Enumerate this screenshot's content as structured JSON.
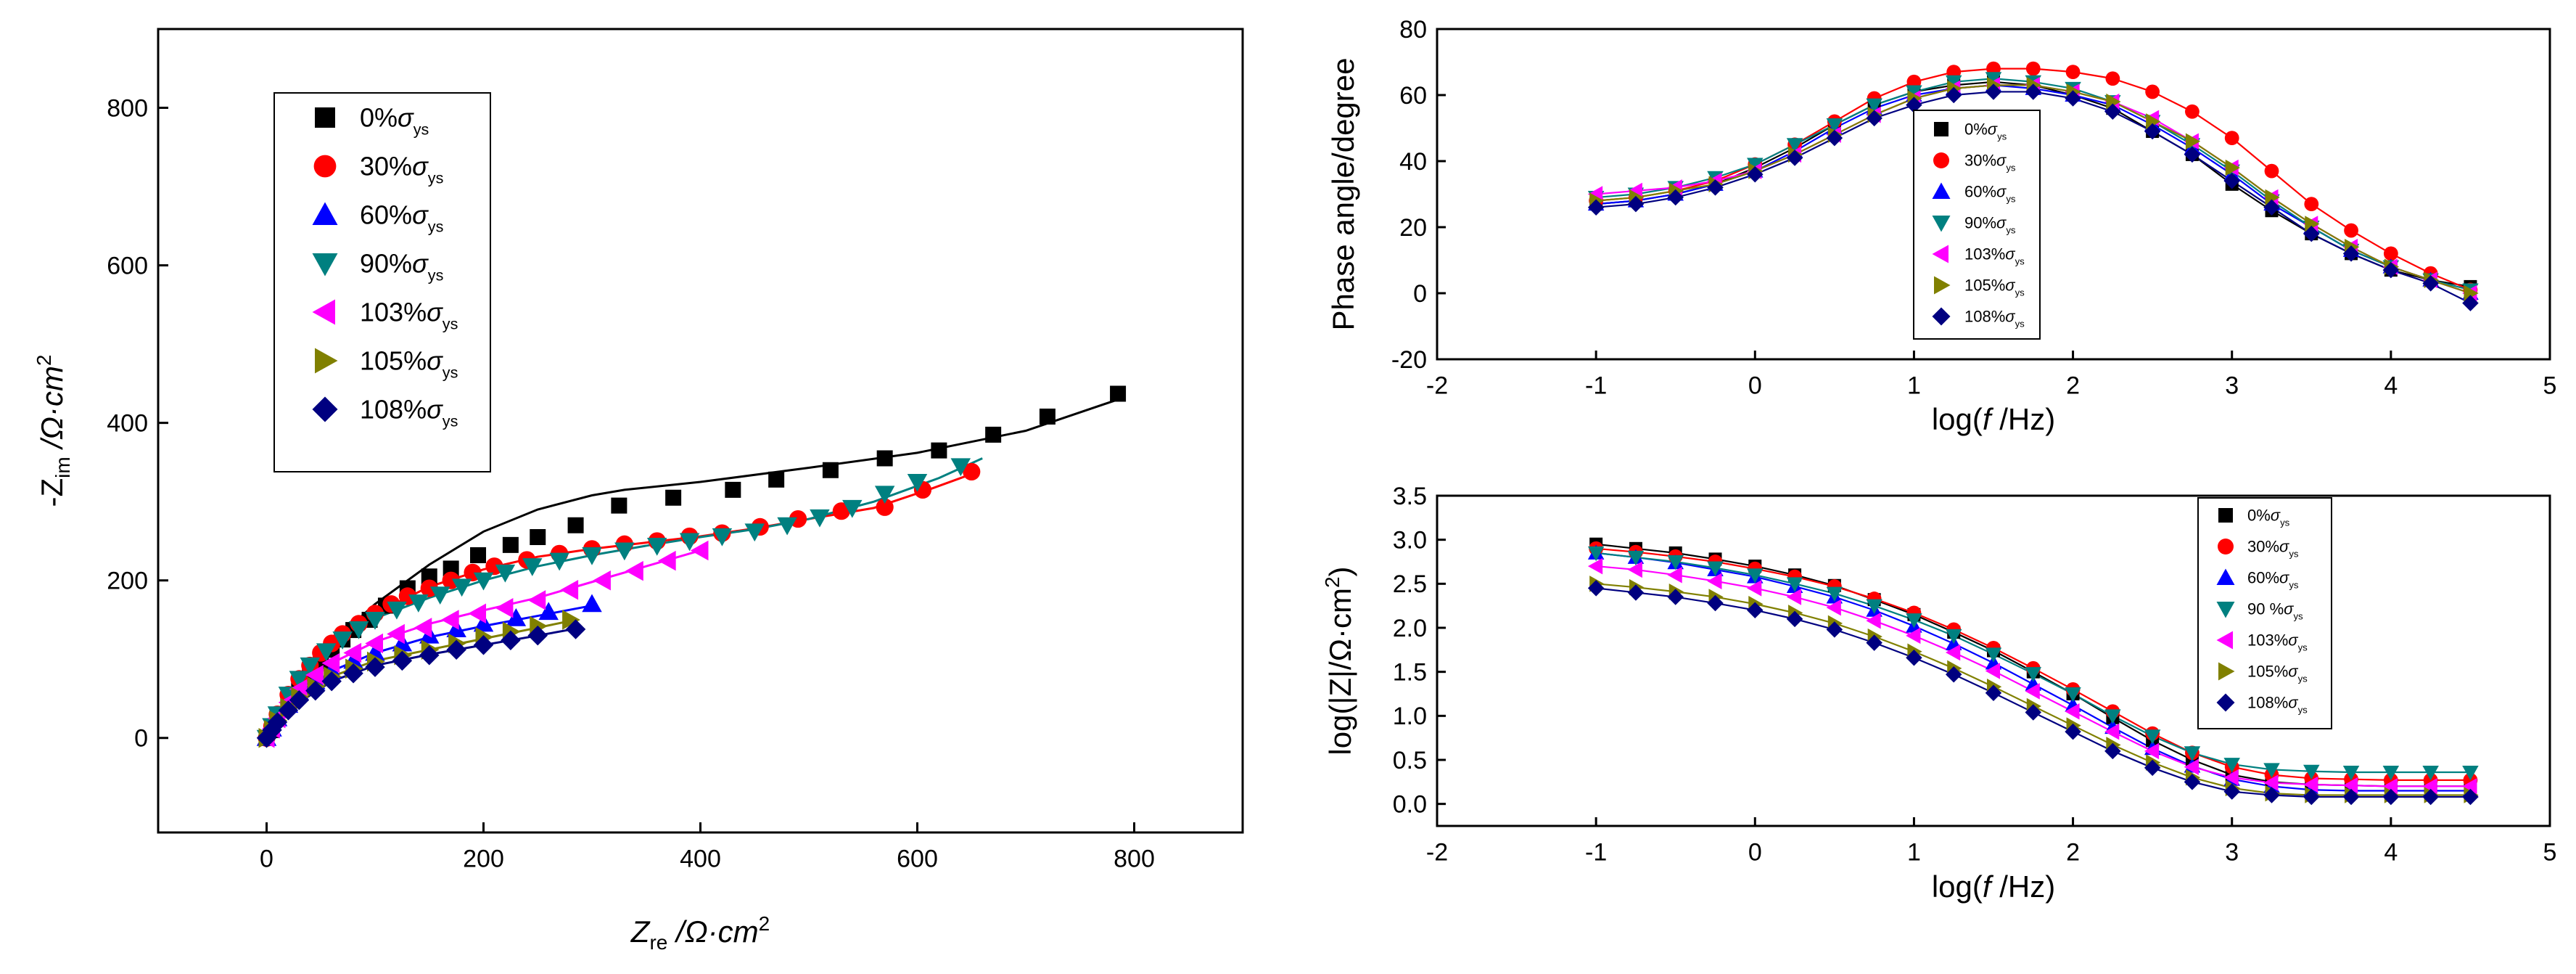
{
  "series_style": [
    {
      "name": "0%",
      "color": "#000000",
      "marker": "square"
    },
    {
      "name": "30%",
      "color": "#ff0000",
      "marker": "circle"
    },
    {
      "name": "60%",
      "color": "#0000ff",
      "marker": "triangle-up"
    },
    {
      "name": "90%",
      "color": "#008080",
      "marker": "triangle-down"
    },
    {
      "name": "103%",
      "color": "#ff00ff",
      "marker": "triangle-left"
    },
    {
      "name": "105%",
      "color": "#808000",
      "marker": "triangle-right"
    },
    {
      "name": "108%",
      "color": "#000080",
      "marker": "diamond"
    }
  ],
  "legend_suffix": {
    "sym": "σ",
    "sub": "ys"
  },
  "chart_data": [
    {
      "type": "scatter",
      "title": "",
      "xlabel": {
        "main": "Z",
        "sub": "re",
        "rest": " /Ω·cm",
        "sup": "2"
      },
      "ylabel": {
        "main": "-Z",
        "sub": "im",
        "rest": " /Ω·cm",
        "sup": "2"
      },
      "xlim": [
        -100,
        900
      ],
      "ylim": [
        -120,
        900
      ],
      "xticks": [
        0,
        200,
        400,
        600,
        800
      ],
      "yticks": [
        0,
        200,
        400,
        600,
        800
      ],
      "legend_entries": [
        "0%",
        "30%",
        "60%",
        "90%",
        "103%",
        "105%",
        "108%"
      ],
      "legend_position": "top-left",
      "series": [
        {
          "name": "0%",
          "x": [
            0,
            5,
            10,
            20,
            30,
            40,
            50,
            60,
            70,
            80,
            95,
            110,
            130,
            150,
            170,
            195,
            225,
            250,
            285,
            325,
            375,
            430,
            470,
            520,
            570,
            620,
            670,
            720,
            785
          ],
          "y": [
            0,
            10,
            25,
            45,
            65,
            82,
            98,
            112,
            125,
            137,
            150,
            168,
            190,
            205,
            215,
            232,
            245,
            255,
            270,
            295,
            305,
            315,
            328,
            340,
            355,
            365,
            385,
            408,
            437
          ]
        },
        {
          "name": "30%",
          "x": [
            0,
            5,
            10,
            20,
            30,
            40,
            50,
            60,
            70,
            85,
            100,
            115,
            130,
            150,
            170,
            190,
            210,
            240,
            270,
            300,
            330,
            360,
            390,
            420,
            455,
            490,
            530,
            570,
            605,
            650
          ],
          "y": [
            0,
            15,
            30,
            55,
            75,
            92,
            108,
            120,
            132,
            145,
            158,
            170,
            180,
            190,
            200,
            210,
            218,
            226,
            234,
            240,
            246,
            250,
            256,
            260,
            268,
            278,
            288,
            293,
            315,
            338
          ]
        },
        {
          "name": "60%",
          "x": [
            0,
            5,
            10,
            20,
            30,
            45,
            60,
            80,
            100,
            125,
            150,
            175,
            200,
            230,
            260,
            300
          ],
          "y": [
            0,
            12,
            25,
            42,
            58,
            72,
            85,
            98,
            108,
            120,
            130,
            138,
            145,
            152,
            160,
            170
          ]
        },
        {
          "name": "90%",
          "x": [
            0,
            5,
            10,
            20,
            30,
            40,
            55,
            70,
            85,
            100,
            120,
            140,
            160,
            180,
            200,
            220,
            245,
            270,
            300,
            330,
            360,
            390,
            420,
            450,
            480,
            510,
            540,
            570,
            600,
            640
          ],
          "y": [
            0,
            15,
            30,
            55,
            75,
            92,
            110,
            125,
            138,
            150,
            163,
            172,
            182,
            192,
            200,
            210,
            218,
            225,
            232,
            238,
            244,
            250,
            256,
            262,
            270,
            280,
            292,
            310,
            325,
            345
          ]
        },
        {
          "name": "103%",
          "x": [
            0,
            5,
            10,
            20,
            30,
            45,
            60,
            80,
            100,
            120,
            145,
            170,
            195,
            220,
            250,
            280,
            310,
            340,
            370,
            400
          ],
          "y": [
            0,
            12,
            25,
            45,
            62,
            80,
            95,
            108,
            120,
            132,
            140,
            150,
            158,
            165,
            175,
            188,
            200,
            212,
            225,
            238
          ]
        },
        {
          "name": "105%",
          "x": [
            0,
            5,
            10,
            20,
            30,
            45,
            60,
            80,
            100,
            125,
            150,
            175,
            200,
            225,
            250,
            280
          ],
          "y": [
            0,
            10,
            22,
            38,
            52,
            65,
            78,
            88,
            97,
            105,
            112,
            120,
            128,
            135,
            142,
            150
          ]
        },
        {
          "name": "108%",
          "x": [
            0,
            5,
            10,
            20,
            30,
            45,
            60,
            80,
            100,
            125,
            150,
            175,
            200,
            225,
            250,
            285
          ],
          "y": [
            0,
            10,
            20,
            35,
            48,
            60,
            72,
            82,
            90,
            98,
            105,
            112,
            118,
            124,
            130,
            138
          ]
        }
      ],
      "fits": [
        {
          "name": "0%",
          "x": [
            0,
            10,
            30,
            60,
            100,
            150,
            200,
            250,
            300,
            330,
            400,
            500,
            600,
            700,
            790
          ],
          "y": [
            0,
            30,
            70,
            120,
            170,
            220,
            262,
            290,
            308,
            315,
            325,
            343,
            362,
            390,
            432
          ]
        },
        {
          "name": "30%",
          "x": [
            0,
            10,
            30,
            60,
            100,
            150,
            200,
            250,
            300,
            350,
            400,
            450,
            500,
            560,
            610,
            650
          ],
          "y": [
            0,
            28,
            72,
            118,
            158,
            192,
            214,
            230,
            240,
            248,
            256,
            266,
            278,
            292,
            315,
            335
          ]
        },
        {
          "name": "90%",
          "x": [
            0,
            10,
            30,
            60,
            100,
            150,
            200,
            250,
            300,
            350,
            400,
            450,
            500,
            560,
            620,
            660
          ],
          "y": [
            0,
            30,
            75,
            118,
            152,
            178,
            200,
            218,
            232,
            244,
            255,
            265,
            278,
            300,
            330,
            355
          ]
        },
        {
          "name": "103%",
          "x": [
            0,
            10,
            30,
            60,
            100,
            150,
            200,
            250,
            300,
            350,
            400
          ],
          "y": [
            0,
            25,
            60,
            95,
            122,
            145,
            162,
            178,
            198,
            218,
            238
          ]
        },
        {
          "name": "60%",
          "x": [
            0,
            10,
            30,
            60,
            100,
            150,
            200,
            250,
            300
          ],
          "y": [
            0,
            25,
            55,
            85,
            108,
            128,
            142,
            155,
            168
          ]
        },
        {
          "name": "105%",
          "x": [
            0,
            10,
            30,
            60,
            100,
            150,
            200,
            250,
            285
          ],
          "y": [
            0,
            22,
            50,
            78,
            98,
            112,
            126,
            140,
            150
          ]
        },
        {
          "name": "108%",
          "x": [
            0,
            10,
            30,
            60,
            100,
            150,
            200,
            250,
            290
          ],
          "y": [
            0,
            20,
            45,
            72,
            92,
            106,
            118,
            130,
            140
          ]
        }
      ]
    },
    {
      "type": "scatter",
      "title": "",
      "xlabel": {
        "pre": "log(",
        "it": "f",
        "post": " /Hz)"
      },
      "ylabel": {
        "text": "Phase angle/degree"
      },
      "xlim": [
        -2,
        5
      ],
      "ylim": [
        -20,
        80
      ],
      "xticks": [
        -2,
        -1,
        0,
        1,
        2,
        3,
        4,
        5
      ],
      "yticks": [
        -20,
        0,
        20,
        40,
        60,
        80
      ],
      "legend_entries": [
        "0%",
        "30%",
        "60%",
        "90%",
        "103%",
        "105%",
        "108%"
      ],
      "legend_position": "top-center",
      "x": [
        -1,
        -0.75,
        -0.5,
        -0.25,
        0,
        0.25,
        0.5,
        0.75,
        1,
        1.25,
        1.5,
        1.75,
        2,
        2.25,
        2.5,
        2.75,
        3,
        3.25,
        3.5,
        3.75,
        4,
        4.25,
        4.5
      ],
      "series": [
        {
          "name": "0%",
          "values": [
            27,
            28,
            30,
            33,
            38,
            44,
            51,
            57,
            61,
            63,
            64,
            63,
            60,
            56,
            49,
            42,
            33,
            25,
            18,
            12,
            7,
            4,
            2
          ]
        },
        {
          "name": "30%",
          "values": [
            28,
            29,
            31,
            34,
            39,
            45,
            52,
            59,
            64,
            67,
            68,
            68,
            67,
            65,
            61,
            55,
            47,
            37,
            27,
            19,
            12,
            6,
            1
          ]
        },
        {
          "name": "60%",
          "values": [
            27,
            28,
            30,
            33,
            37,
            43,
            50,
            56,
            60,
            62,
            63,
            62,
            60,
            57,
            51,
            44,
            36,
            27,
            20,
            13,
            8,
            4,
            0
          ]
        },
        {
          "name": "90%",
          "values": [
            29,
            30,
            32,
            35,
            39,
            45,
            51,
            57,
            61,
            64,
            65,
            64,
            62,
            58,
            52,
            45,
            37,
            28,
            20,
            13,
            8,
            4,
            1
          ]
        },
        {
          "name": "103%",
          "values": [
            30,
            31,
            32,
            34,
            37,
            42,
            48,
            54,
            59,
            62,
            63,
            63,
            61,
            58,
            53,
            46,
            38,
            29,
            21,
            14,
            8,
            4,
            0
          ]
        },
        {
          "name": "105%",
          "values": [
            28,
            29,
            31,
            33,
            37,
            42,
            48,
            54,
            59,
            62,
            63,
            63,
            61,
            58,
            52,
            46,
            38,
            29,
            21,
            14,
            8,
            4,
            0
          ]
        },
        {
          "name": "108%",
          "values": [
            26,
            27,
            29,
            32,
            36,
            41,
            47,
            53,
            57,
            60,
            61,
            61,
            59,
            55,
            49,
            42,
            34,
            26,
            18,
            12,
            7,
            3,
            -3
          ]
        }
      ]
    },
    {
      "type": "scatter",
      "title": "",
      "xlabel": {
        "pre": "log(",
        "it": "f",
        "post": " /Hz)"
      },
      "ylabel": {
        "text": "log(|Z|/Ω·cm",
        "sup": "2",
        "close": ")"
      },
      "xlim": [
        -2,
        5
      ],
      "ylim": [
        -0.25,
        3.5
      ],
      "xticks": [
        -2,
        -1,
        0,
        1,
        2,
        3,
        4,
        5
      ],
      "yticks": [
        0,
        0.5,
        1,
        1.5,
        2,
        2.5,
        3,
        3.5
      ],
      "legend_entries": [
        "0%",
        "30%",
        "60%",
        "90 %",
        "103%",
        "105%",
        "108%"
      ],
      "legend_position": "top-right",
      "x": [
        -1,
        -0.75,
        -0.5,
        -0.25,
        0,
        0.25,
        0.5,
        0.75,
        1,
        1.25,
        1.5,
        1.75,
        2,
        2.25,
        2.5,
        2.75,
        3,
        3.25,
        3.5,
        3.75,
        4,
        4.25,
        4.5
      ],
      "series": [
        {
          "name": "0%",
          "values": [
            2.95,
            2.9,
            2.85,
            2.78,
            2.7,
            2.6,
            2.48,
            2.32,
            2.15,
            1.95,
            1.74,
            1.5,
            1.25,
            0.98,
            0.72,
            0.5,
            0.33,
            0.25,
            0.22,
            0.21,
            0.2,
            0.2,
            0.2
          ]
        },
        {
          "name": "30%",
          "values": [
            2.9,
            2.86,
            2.81,
            2.75,
            2.67,
            2.58,
            2.47,
            2.33,
            2.17,
            1.98,
            1.77,
            1.54,
            1.3,
            1.05,
            0.8,
            0.58,
            0.42,
            0.33,
            0.29,
            0.28,
            0.27,
            0.27,
            0.27
          ]
        },
        {
          "name": "60%",
          "values": [
            2.85,
            2.8,
            2.74,
            2.66,
            2.58,
            2.47,
            2.35,
            2.2,
            2.02,
            1.82,
            1.6,
            1.36,
            1.12,
            0.87,
            0.63,
            0.43,
            0.28,
            0.2,
            0.16,
            0.15,
            0.15,
            0.15,
            0.15
          ]
        },
        {
          "name": "90%",
          "values": [
            2.85,
            2.8,
            2.75,
            2.68,
            2.6,
            2.5,
            2.39,
            2.25,
            2.09,
            1.91,
            1.7,
            1.48,
            1.25,
            1.0,
            0.77,
            0.58,
            0.45,
            0.39,
            0.37,
            0.36,
            0.36,
            0.36,
            0.36
          ]
        },
        {
          "name": "103%",
          "values": [
            2.7,
            2.66,
            2.6,
            2.53,
            2.45,
            2.35,
            2.23,
            2.08,
            1.91,
            1.72,
            1.51,
            1.28,
            1.05,
            0.82,
            0.6,
            0.42,
            0.3,
            0.24,
            0.22,
            0.21,
            0.2,
            0.2,
            0.2
          ]
        },
        {
          "name": "105%",
          "values": [
            2.5,
            2.46,
            2.41,
            2.35,
            2.27,
            2.17,
            2.05,
            1.9,
            1.73,
            1.54,
            1.33,
            1.11,
            0.89,
            0.67,
            0.47,
            0.3,
            0.18,
            0.12,
            0.1,
            0.1,
            0.1,
            0.1,
            0.1
          ]
        },
        {
          "name": "108%",
          "values": [
            2.45,
            2.4,
            2.35,
            2.28,
            2.2,
            2.1,
            1.98,
            1.83,
            1.66,
            1.47,
            1.26,
            1.04,
            0.82,
            0.6,
            0.41,
            0.25,
            0.14,
            0.1,
            0.08,
            0.08,
            0.08,
            0.08,
            0.08
          ]
        }
      ]
    }
  ]
}
